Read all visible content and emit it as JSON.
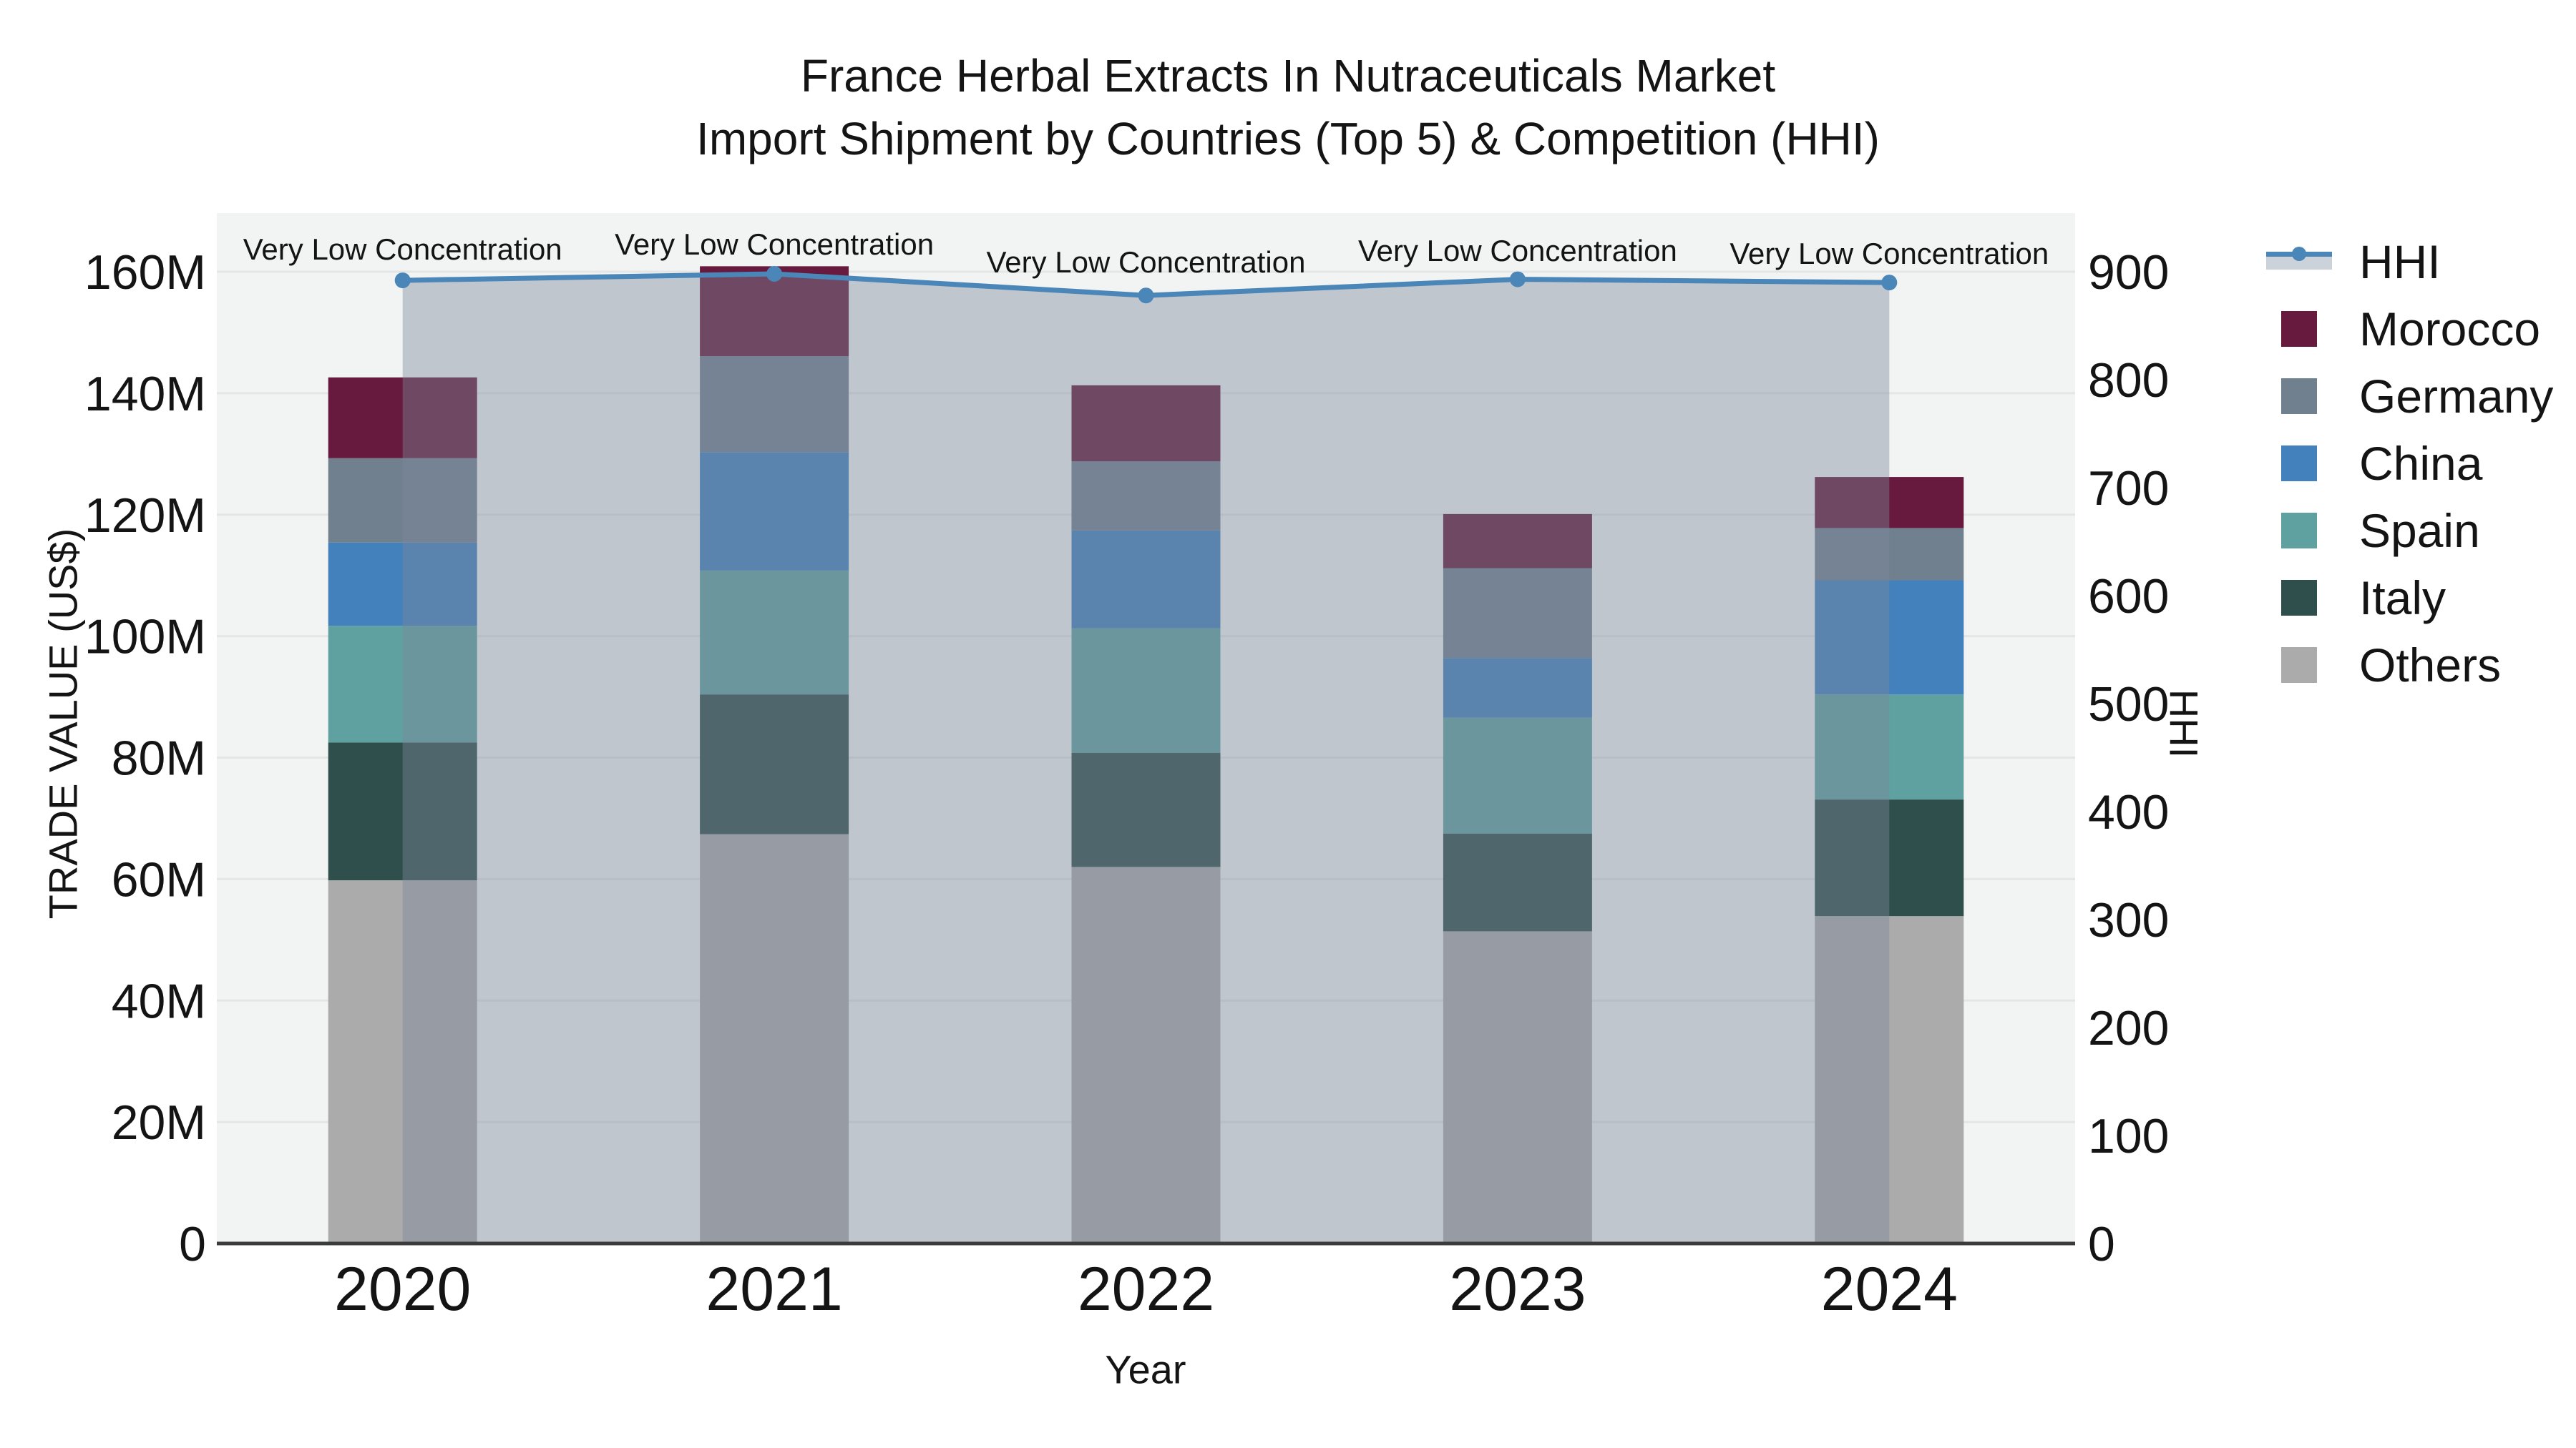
{
  "title": {
    "line1": "France Herbal Extracts In Nutraceuticals Market",
    "line2": "Import Shipment by Countries (Top 5) & Competition (HHI)"
  },
  "axes": {
    "y_left": {
      "title": "TRADE VALUE (US$)",
      "tick_labels": [
        "0",
        "20M",
        "40M",
        "60M",
        "80M",
        "100M",
        "120M",
        "140M",
        "160M"
      ],
      "lim": [
        0,
        160
      ]
    },
    "y_right": {
      "title": "HHI",
      "tick_labels": [
        "0",
        "100",
        "200",
        "300",
        "400",
        "500",
        "600",
        "700",
        "800",
        "900"
      ],
      "lim": [
        0,
        900
      ]
    },
    "x": {
      "title": "Year",
      "tick_labels": [
        "2020",
        "2021",
        "2022",
        "2023",
        "2024"
      ]
    }
  },
  "chart_data": {
    "type": "bar",
    "subtype": "stacked-bars-with-line-overlay",
    "value_unit": "US$ millions",
    "categories": [
      "2020",
      "2021",
      "2022",
      "2023",
      "2024"
    ],
    "stack_order_bottom_to_top": [
      "Others",
      "Italy",
      "Spain",
      "China",
      "Germany",
      "Morocco"
    ],
    "series": [
      {
        "name": "Others",
        "color": "#ABABAB",
        "values": [
          59.8,
          67.4,
          62.0,
          51.4,
          53.9
        ]
      },
      {
        "name": "Italy",
        "color": "#2E4F4B",
        "values": [
          22.7,
          23.0,
          18.8,
          16.1,
          19.2
        ]
      },
      {
        "name": "Spain",
        "color": "#5FA0A1",
        "values": [
          19.2,
          20.4,
          20.5,
          19.1,
          17.3
        ]
      },
      {
        "name": "China",
        "color": "#4381BC",
        "values": [
          13.7,
          19.5,
          16.1,
          9.8,
          18.8
        ]
      },
      {
        "name": "Germany",
        "color": "#70808F",
        "values": [
          13.9,
          15.8,
          11.4,
          14.8,
          8.6
        ]
      },
      {
        "name": "Morocco",
        "color": "#671A3D",
        "values": [
          13.3,
          14.8,
          12.5,
          8.9,
          8.4
        ]
      }
    ],
    "bar_totals": [
      142.6,
      160.9,
      141.3,
      120.1,
      126.2
    ],
    "line_series": {
      "name": "HHI",
      "color": "#4A86B8",
      "area_fill": "rgba(124,136,155,0.42)",
      "values": [
        892,
        898,
        878,
        893,
        890
      ]
    },
    "annotations": [
      {
        "text": "Very Low Concentration",
        "category": "2020"
      },
      {
        "text": "Very Low Concentration",
        "category": "2021"
      },
      {
        "text": "Very Low Concentration",
        "category": "2022"
      },
      {
        "text": "Very Low Concentration",
        "category": "2023"
      },
      {
        "text": "Very Low Concentration",
        "category": "2024"
      }
    ],
    "grid": true,
    "legend_position": "right",
    "colors": {
      "plot_background": "#F2F3F3",
      "gridline": "#E4E6E6",
      "axis_line": "#3B3B3B",
      "text": "#141414",
      "hhi_line": "#4A86B8",
      "hhi_legend_band": "#CCD2D9"
    }
  },
  "legend": {
    "items": [
      {
        "label": "HHI",
        "type": "line",
        "color": "#4A86B8"
      },
      {
        "label": "Morocco",
        "type": "swatch",
        "color": "#671A3D"
      },
      {
        "label": "Germany",
        "type": "swatch",
        "color": "#70808F"
      },
      {
        "label": "China",
        "type": "swatch",
        "color": "#4381BC"
      },
      {
        "label": "Spain",
        "type": "swatch",
        "color": "#5FA0A1"
      },
      {
        "label": "Italy",
        "type": "swatch",
        "color": "#2E4F4B"
      },
      {
        "label": "Others",
        "type": "swatch",
        "color": "#ABABAB"
      }
    ]
  }
}
